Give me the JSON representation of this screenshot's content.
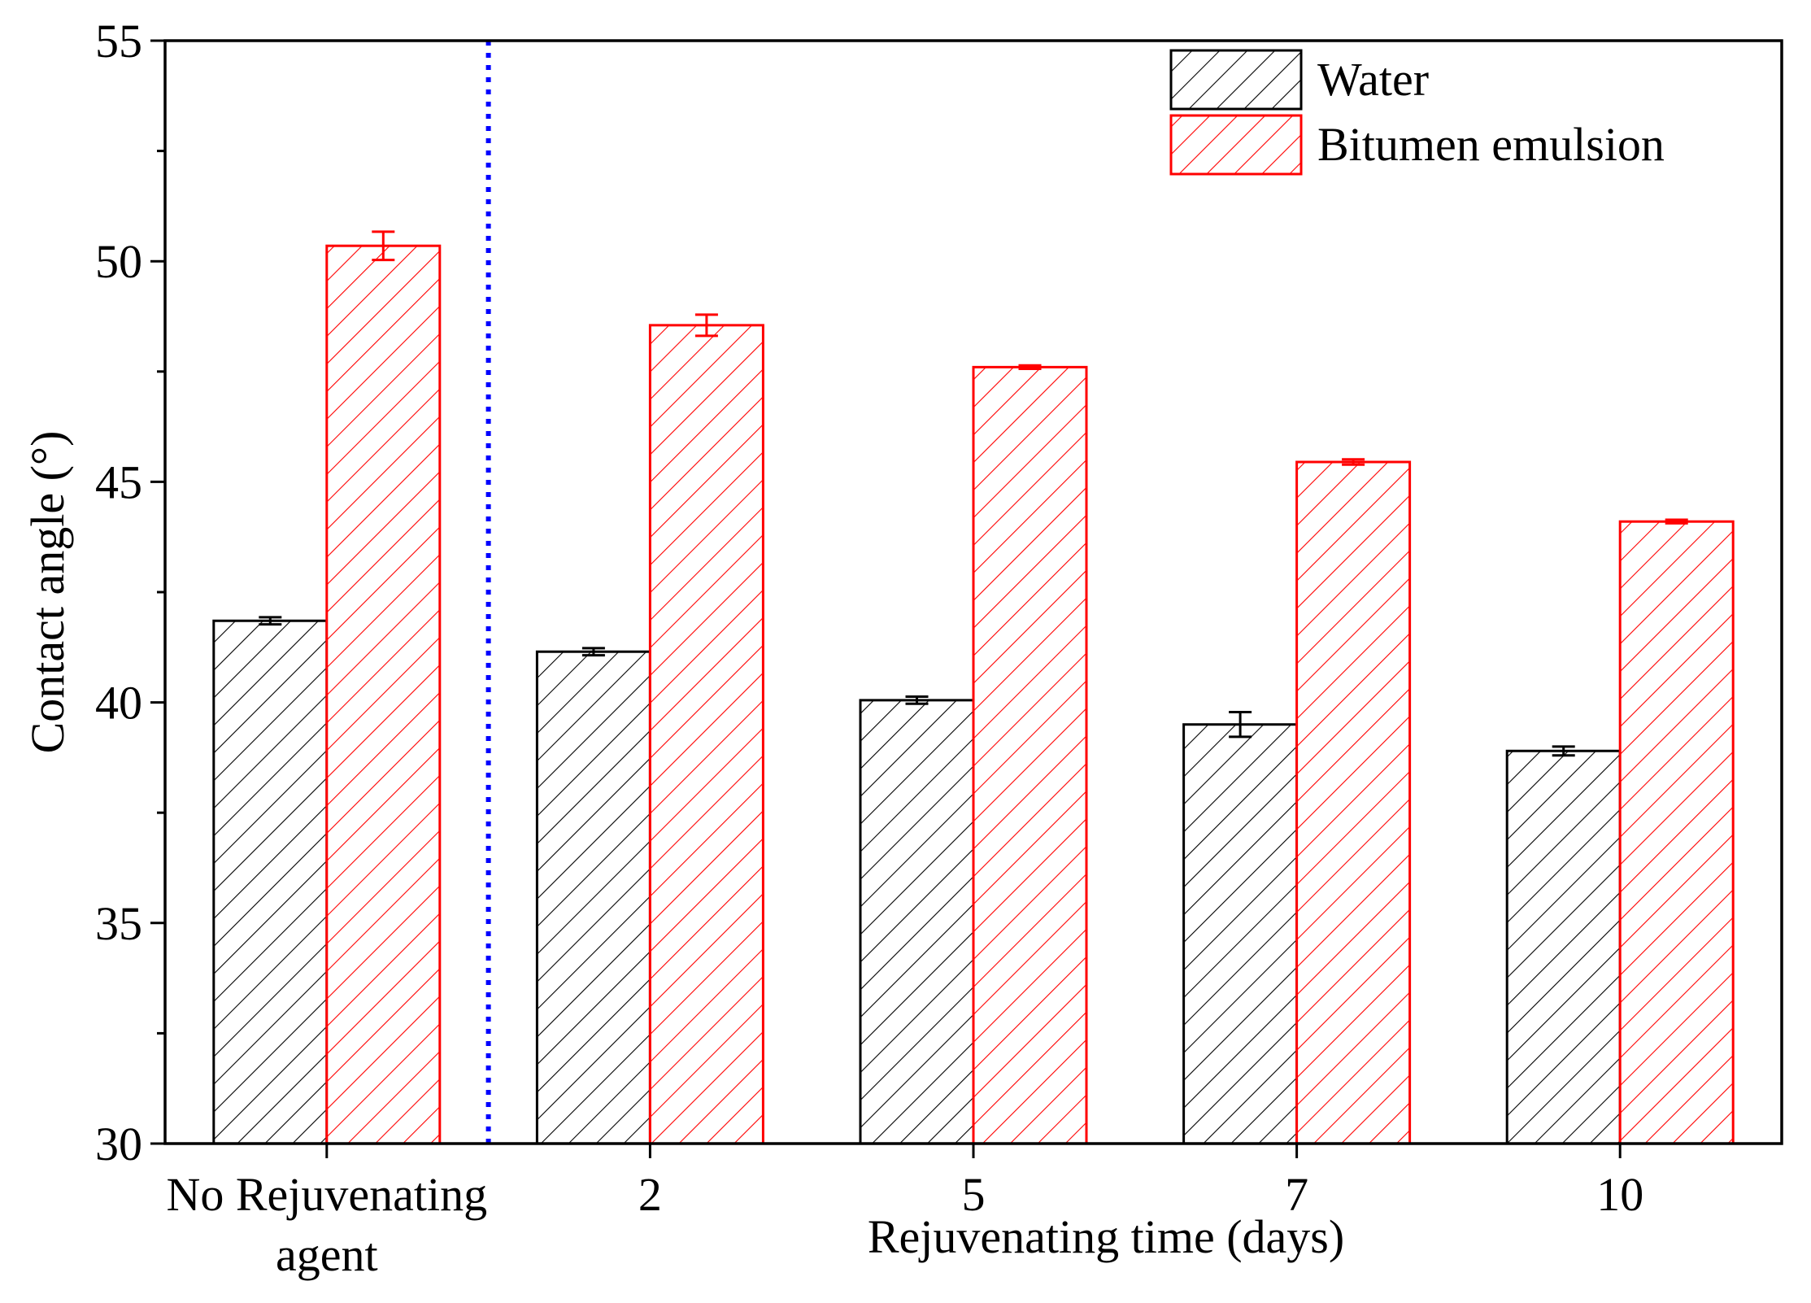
{
  "chart_data": {
    "type": "bar",
    "categories": [
      "No Rejuvenating\nagent",
      "2",
      "5",
      "7",
      "10"
    ],
    "series": [
      {
        "name": "Water",
        "color": "#000000",
        "values": [
          41.85,
          41.15,
          40.05,
          39.5,
          38.9
        ],
        "errors": [
          0.08,
          0.08,
          0.08,
          0.28,
          0.1
        ]
      },
      {
        "name": "Bitumen emulsion",
        "color": "#ff0000",
        "values": [
          50.35,
          48.55,
          47.6,
          45.45,
          44.1
        ],
        "errors": [
          0.32,
          0.24,
          0.04,
          0.06,
          0.04
        ]
      }
    ],
    "xlabel": "Rejuvenating time (days)",
    "ylabel": "Contact angle (°)",
    "ylim": [
      30,
      55
    ],
    "yticks": [
      30,
      35,
      40,
      45,
      50,
      55
    ],
    "fill_pattern": "diagonal-hatch",
    "separator": {
      "after_category_index": 0,
      "color": "#0000ff",
      "style": "dotted"
    },
    "legend_position": "top-right",
    "grid": false
  }
}
